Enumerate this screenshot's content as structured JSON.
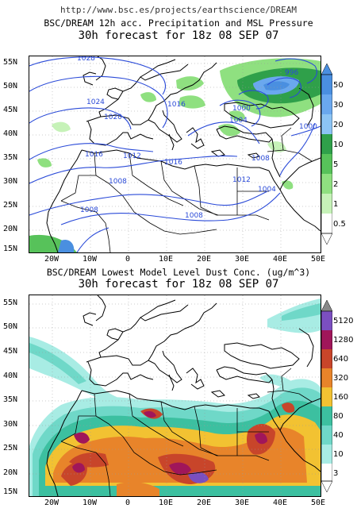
{
  "source_url": "http://www.bsc.es/projects/earthscience/DREAM",
  "top_panel": {
    "title1": "BSC/DREAM 12h acc. Precipitation and MSL Pressure",
    "title2": "30h forecast for 18z 08 SEP 07",
    "isobar_labels": [
      "1028",
      "1024",
      "1020",
      "1016",
      "1012",
      "1016",
      "1008",
      "1008",
      "1016",
      "1008",
      "1012",
      "1004",
      "1000",
      "1004",
      "1008",
      "1000",
      "996"
    ],
    "colorbar": {
      "labels": [
        "50",
        "30",
        "20",
        "10",
        "5",
        "2",
        "1",
        "0.5"
      ],
      "colors": [
        "#4a8fe0",
        "#6aa8ee",
        "#8cc4f4",
        "#2fa04a",
        "#57c25a",
        "#8fe080",
        "#c6f2b8",
        "#ffffff"
      ]
    }
  },
  "bottom_panel": {
    "title1": "BSC/DREAM Lowest Model Level Dust Conc. (ug/m^3)",
    "title2": "30h forecast for 18z 08 SEP 07",
    "colorbar": {
      "labels": [
        "5120",
        "1280",
        "640",
        "320",
        "160",
        "80",
        "40",
        "10",
        "3"
      ],
      "colors": [
        "#7b4fc0",
        "#a0165a",
        "#c8452a",
        "#e8842a",
        "#f2c232",
        "#3cc0a0",
        "#6fd8c8",
        "#a8ece4",
        "#ffffff"
      ]
    }
  },
  "lat_labels": [
    "55N",
    "50N",
    "45N",
    "40N",
    "35N",
    "30N",
    "25N",
    "20N",
    "15N"
  ],
  "lon_labels": [
    "20W",
    "10W",
    "0",
    "10E",
    "20E",
    "30E",
    "40E",
    "50E"
  ]
}
